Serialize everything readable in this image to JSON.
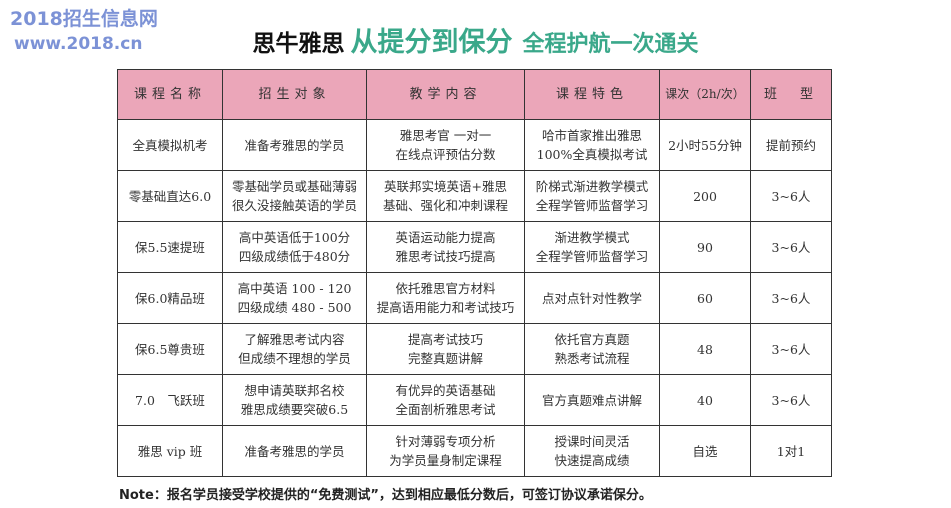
{
  "title": {
    "part1": "思牛雅思",
    "part2": "从提分到保分",
    "part3": "全程护航一次通关"
  },
  "colors": {
    "accent": "#3aa88a",
    "header_bg": "#eba6b9"
  },
  "table": {
    "headers": [
      "课程名称",
      "招生对象",
      "教学内容",
      "课程特色",
      "课次（2h/次）",
      "班　型"
    ],
    "rows": [
      {
        "name": "全真模拟机考",
        "target": [
          "准备考雅思的学员"
        ],
        "content": [
          "雅思考官 一对一",
          "在线点评预估分数"
        ],
        "feature": [
          "哈市首家推出雅思",
          "100%全真模拟考试"
        ],
        "sessions": "2小时55分钟",
        "class": "提前预约"
      },
      {
        "name": "零基础直达6.0",
        "target": [
          "零基础学员或基础薄弱",
          "很久没接触英语的学员"
        ],
        "content": [
          "英联邦实境英语+雅思",
          "基础、强化和冲刺课程"
        ],
        "feature": [
          "阶梯式渐进教学模式",
          "全程学管师监督学习"
        ],
        "sessions": "200",
        "class": "3~6人"
      },
      {
        "name": "保5.5速提班",
        "target": [
          "高中英语低于100分",
          "四级成绩低于480分"
        ],
        "content": [
          "英语运动能力提高",
          "雅思考试技巧提高"
        ],
        "feature": [
          "渐进教学模式",
          "全程学管师监督学习"
        ],
        "sessions": "90",
        "class": "3~6人"
      },
      {
        "name": "保6.0精品班",
        "target": [
          "高中英语 100 - 120",
          "四级成绩 480 - 500"
        ],
        "content": [
          "依托雅思官方材料",
          "提高语用能力和考试技巧"
        ],
        "feature": [
          "点对点针对性教学"
        ],
        "sessions": "60",
        "class": "3~6人"
      },
      {
        "name": "保6.5尊贵班",
        "target": [
          "了解雅思考试内容",
          "但成绩不理想的学员"
        ],
        "content": [
          "提高考试技巧",
          "完整真题讲解"
        ],
        "feature": [
          "依托官方真题",
          "熟悉考试流程"
        ],
        "sessions": "48",
        "class": "3~6人"
      },
      {
        "name": "7.0　飞跃班",
        "target": [
          "想申请英联邦名校",
          "雅思成绩要突破6.5"
        ],
        "content": [
          "有优异的英语基础",
          "全面剖析雅思考试"
        ],
        "feature": [
          "官方真题难点讲解"
        ],
        "sessions": "40",
        "class": "3~6人"
      },
      {
        "name": "雅思 vip 班",
        "target": [
          "准备考雅思的学员"
        ],
        "content": [
          "针对薄弱专项分析",
          "为学员量身制定课程"
        ],
        "feature": [
          "授课时间灵活",
          "快速提高成绩"
        ],
        "sessions": "自选",
        "class": "1对1"
      }
    ]
  },
  "note": "Note：报名学员接受学校提供的“免费测试”，达到相应最低分数后，可签订协议承诺保分。",
  "watermark": {
    "line1": "2018招生信息网",
    "line2": "www.2018.cn"
  }
}
